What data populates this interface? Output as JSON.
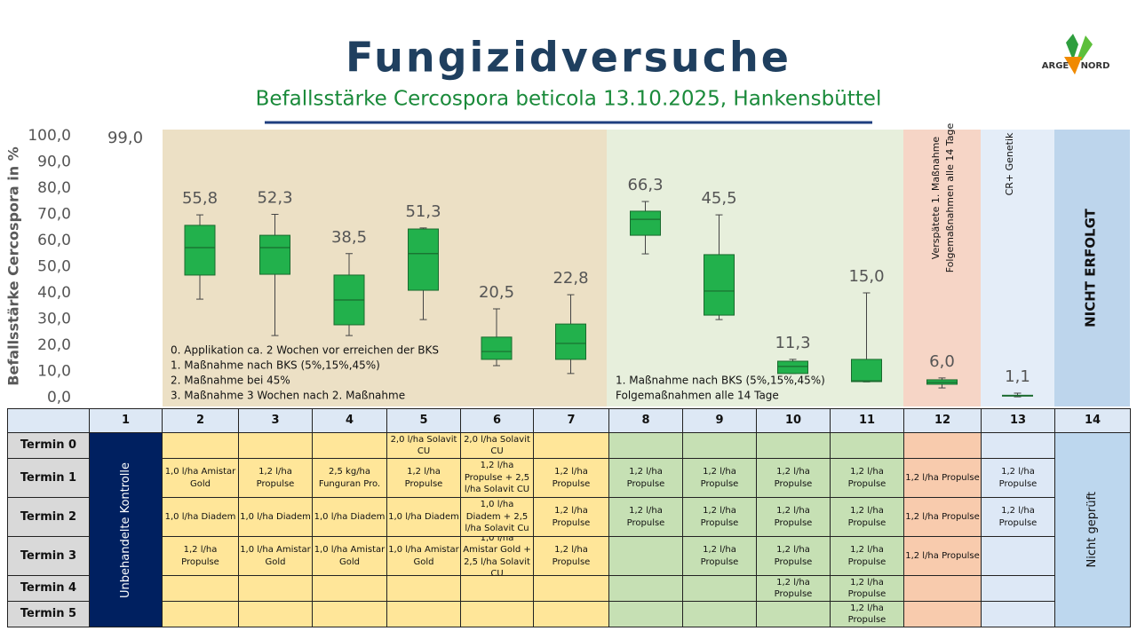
{
  "chart_data": {
    "type": "box",
    "title": "Fungizidversuche",
    "subtitle": "Befallsstärke Cercospora beticola 13.10.2025, Hankensbüttel",
    "logo": {
      "left": "ARGE",
      "right": "NORD"
    },
    "y_label": "Befallsstärke Cercospora in %",
    "ylim": [
      0,
      100
    ],
    "yticks": [
      {
        "value": 0,
        "label": "0,0"
      },
      {
        "value": 10,
        "label": "10,0"
      },
      {
        "value": 20,
        "label": "20,0"
      },
      {
        "value": 30,
        "label": "30,0"
      },
      {
        "value": 40,
        "label": "40,0"
      },
      {
        "value": 50,
        "label": "50,0"
      },
      {
        "value": 60,
        "label": "60,0"
      },
      {
        "value": 70,
        "label": "70,0"
      },
      {
        "value": 80,
        "label": "80,0"
      },
      {
        "value": 90,
        "label": "90,0"
      },
      {
        "value": 100,
        "label": "100,0"
      }
    ],
    "color": "#22b14c",
    "boxes": [
      {
        "min": null,
        "q1": null,
        "median": null,
        "q3": null,
        "max": null,
        "mean": 99,
        "mean_label": "99,0"
      },
      {
        "min": 37.6,
        "q1": 46.8,
        "median": 57.3,
        "q3": 65.8,
        "max": 69.8,
        "mean": 55.8,
        "mean_label": "55,8"
      },
      {
        "min": 23.7,
        "q1": 47.1,
        "median": 57.3,
        "q3": 62.0,
        "max": 70,
        "mean": 52.3,
        "mean_label": "52,3"
      },
      {
        "min": 23.7,
        "q1": 27.8,
        "median": 37.3,
        "q3": 46.8,
        "max": 55,
        "mean": 38.5,
        "mean_label": "38,5"
      },
      {
        "min": 29.8,
        "q1": 41.0,
        "median": 55,
        "q3": 64.4,
        "max": 64.8,
        "mean": 51.3,
        "mean_label": "51,3"
      },
      {
        "min": 12.2,
        "q1": 14.6,
        "median": 17.6,
        "q3": 23.1,
        "max": 33.9,
        "mean": 20.5,
        "mean_label": "20,5"
      },
      {
        "min": 9.2,
        "q1": 14.6,
        "median": 20.7,
        "q3": 28.1,
        "max": 39.3,
        "mean": 22.8,
        "mean_label": "22,8"
      },
      {
        "min": 54.9,
        "q1": 62.0,
        "median": 68.1,
        "q3": 71.2,
        "max": 74.9,
        "mean": 66.3,
        "mean_label": "66,3"
      },
      {
        "min": 29.8,
        "q1": 31.5,
        "median": 40.7,
        "q3": 54.6,
        "max": 69.8,
        "mean": 45.5,
        "mean_label": "45,5"
      },
      {
        "min": 9.2,
        "q1": 9.2,
        "median": 11.9,
        "q3": 13.9,
        "max": 14.6,
        "mean": 11.3,
        "mean_label": "11,3"
      },
      {
        "min": 6.0,
        "q1": 6.1,
        "median": 6.4,
        "q3": 14.6,
        "max": 40,
        "mean": 15.0,
        "mean_label": "15,0"
      },
      {
        "min": 3.7,
        "q1": 5.1,
        "median": 5.8,
        "q3": 6.8,
        "max": 7.5,
        "mean": 6.0,
        "mean_label": "6,0"
      },
      {
        "min": 0.3,
        "q1": 0.7,
        "median": 0.8,
        "q3": 0.9,
        "max": 1.7,
        "mean": 1.1,
        "mean_label": "1,1"
      }
    ],
    "notes_treated": [
      "0. Applikation ca. 2 Wochen vor erreichen der BKS",
      "1. Maßnahme nach BKS (5%,15%,45%)",
      "2. Maßnahme bei 45%",
      "3. Maßnahme 3 Wochen nach 2. Maßnahme"
    ],
    "notes_green": [
      "1. Maßnahme nach BKS (5%,15%,45%)",
      "Folgemaßnahmen alle 14 Tage"
    ],
    "notes_late": [
      "Verspätete 1. Maßnahme",
      "Folgemaßnahmen alle 14 Tage"
    ],
    "note_genetics": "CR+ Genetik",
    "note_not_done": "NICHT ERFOLGT"
  },
  "table": {
    "header": [
      "1",
      "2",
      "3",
      "4",
      "5",
      "6",
      "7",
      "8",
      "9",
      "10",
      "11",
      "12",
      "13",
      "14"
    ],
    "control_label": "Unbehandelte Kontrolle",
    "untested_label": "Nicht geprüft",
    "rows": [
      {
        "label": "Termin 0",
        "cells": [
          null,
          null,
          null,
          "2,0 l/ha Solavit CU",
          "2,0 l/ha Solavit CU",
          null,
          null,
          null,
          null,
          null,
          null,
          null
        ]
      },
      {
        "label": "Termin 1",
        "cells": [
          "1,0 l/ha Amistar Gold",
          "1,2 l/ha Propulse",
          "2,5 kg/ha Funguran Pro.",
          "1,2 l/ha Propulse",
          "1,2 l/ha Propulse + 2,5 l/ha Solavit CU",
          "1,2 l/ha Propulse",
          "1,2 l/ha Propulse",
          "1,2 l/ha Propulse",
          "1,2 l/ha Propulse",
          "1,2 l/ha Propulse",
          "1,2 l/ha Propulse",
          "1,2 l/ha Propulse"
        ]
      },
      {
        "label": "Termin 2",
        "cells": [
          "1,0 l/ha Diadem",
          "1,0 l/ha Diadem",
          "1,0 l/ha Diadem",
          "1,0 l/ha Diadem",
          "1,0 l/ha Diadem + 2,5 l/ha Solavit Cu",
          "1,2 l/ha Propulse",
          "1,2 l/ha Propulse",
          "1,2 l/ha Propulse",
          "1,2 l/ha Propulse",
          "1,2 l/ha Propulse",
          "1,2 l/ha Propulse",
          "1,2 l/ha Propulse"
        ]
      },
      {
        "label": "Termin 3",
        "cells": [
          "1,2 l/ha Propulse",
          "1,0 l/ha Amistar Gold",
          "1,0 l/ha Amistar Gold",
          "1,0 l/ha Amistar Gold",
          "1,0 l/ha Amistar Gold + 2,5 l/ha Solavit CU",
          "1,2 l/ha Propulse",
          null,
          "1,2 l/ha Propulse",
          "1,2 l/ha Propulse",
          "1,2 l/ha Propulse",
          "1,2 l/ha Propulse",
          null
        ]
      },
      {
        "label": "Termin 4",
        "cells": [
          null,
          null,
          null,
          null,
          null,
          null,
          null,
          null,
          "1,2 l/ha Propulse",
          "1,2 l/ha Propulse",
          null,
          null
        ]
      },
      {
        "label": "Termin 5",
        "cells": [
          null,
          null,
          null,
          null,
          null,
          null,
          null,
          null,
          null,
          "1,2 l/ha Propulse",
          null,
          null
        ]
      }
    ]
  }
}
